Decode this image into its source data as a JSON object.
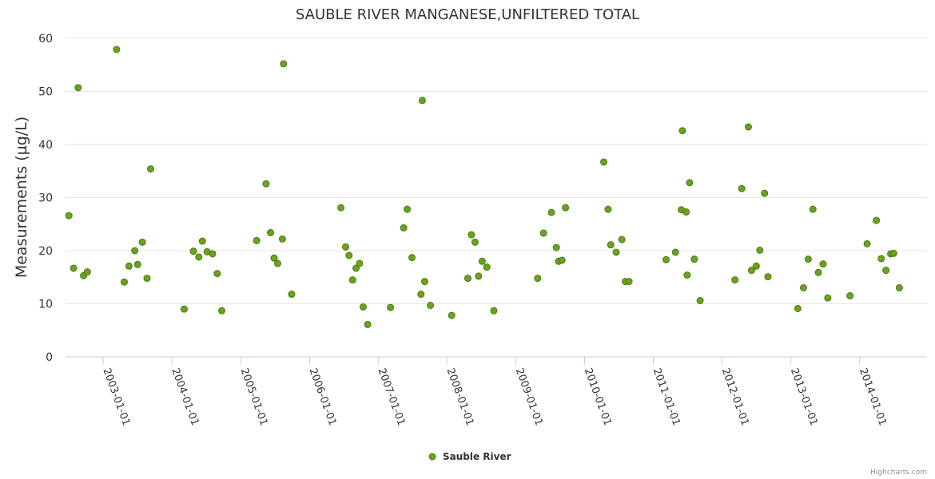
{
  "chart_data": {
    "type": "scatter",
    "title": "SAUBLE RIVER MANGANESE,UNFILTERED TOTAL",
    "ylabel": "Measurements (µg/L)",
    "xlabel": "",
    "ylim": [
      0,
      60
    ],
    "yticks": [
      0,
      10,
      20,
      30,
      40,
      50,
      60
    ],
    "xlim": [
      "2002-06-15",
      "2014-12-25"
    ],
    "xticks": [
      "2003-01-01",
      "2004-01-01",
      "2005-01-01",
      "2006-01-01",
      "2007-01-01",
      "2008-01-01",
      "2009-01-01",
      "2010-01-01",
      "2011-01-01",
      "2012-01-01",
      "2013-01-01",
      "2014-01-01"
    ],
    "grid": true,
    "legend": "bottom-center",
    "series": [
      {
        "name": "Sauble River",
        "color": "#6aa31e",
        "points": [
          {
            "x": "2002-07-03",
            "y": 26.6
          },
          {
            "x": "2002-07-28",
            "y": 16.7
          },
          {
            "x": "2002-08-21",
            "y": 50.7
          },
          {
            "x": "2002-09-19",
            "y": 15.3
          },
          {
            "x": "2002-10-09",
            "y": 16.0
          },
          {
            "x": "2003-03-13",
            "y": 57.9
          },
          {
            "x": "2003-04-23",
            "y": 14.1
          },
          {
            "x": "2003-05-18",
            "y": 17.1
          },
          {
            "x": "2003-06-18",
            "y": 20.0
          },
          {
            "x": "2003-07-03",
            "y": 17.4
          },
          {
            "x": "2003-07-28",
            "y": 21.6
          },
          {
            "x": "2003-08-22",
            "y": 14.8
          },
          {
            "x": "2003-09-10",
            "y": 35.4
          },
          {
            "x": "2004-03-06",
            "y": 9.0
          },
          {
            "x": "2004-04-24",
            "y": 19.9
          },
          {
            "x": "2004-05-23",
            "y": 18.8
          },
          {
            "x": "2004-06-11",
            "y": 21.8
          },
          {
            "x": "2004-07-06",
            "y": 19.8
          },
          {
            "x": "2004-08-04",
            "y": 19.4
          },
          {
            "x": "2004-08-29",
            "y": 15.7
          },
          {
            "x": "2004-09-22",
            "y": 8.7
          },
          {
            "x": "2005-03-26",
            "y": 21.9
          },
          {
            "x": "2005-05-15",
            "y": 32.6
          },
          {
            "x": "2005-06-08",
            "y": 23.4
          },
          {
            "x": "2005-06-27",
            "y": 18.6
          },
          {
            "x": "2005-07-16",
            "y": 17.6
          },
          {
            "x": "2005-08-10",
            "y": 22.2
          },
          {
            "x": "2005-08-16",
            "y": 55.2
          },
          {
            "x": "2005-09-28",
            "y": 11.8
          },
          {
            "x": "2006-06-17",
            "y": 28.1
          },
          {
            "x": "2006-07-12",
            "y": 20.7
          },
          {
            "x": "2006-07-30",
            "y": 19.1
          },
          {
            "x": "2006-08-18",
            "y": 14.5
          },
          {
            "x": "2006-09-05",
            "y": 16.7
          },
          {
            "x": "2006-09-24",
            "y": 17.6
          },
          {
            "x": "2006-10-13",
            "y": 9.4
          },
          {
            "x": "2006-11-06",
            "y": 6.1
          },
          {
            "x": "2007-03-07",
            "y": 9.3
          },
          {
            "x": "2007-05-16",
            "y": 24.3
          },
          {
            "x": "2007-06-04",
            "y": 27.8
          },
          {
            "x": "2007-06-29",
            "y": 18.7
          },
          {
            "x": "2007-08-16",
            "y": 11.8
          },
          {
            "x": "2007-08-23",
            "y": 48.3
          },
          {
            "x": "2007-09-05",
            "y": 14.2
          },
          {
            "x": "2007-10-05",
            "y": 9.7
          },
          {
            "x": "2008-01-26",
            "y": 7.8
          },
          {
            "x": "2008-04-21",
            "y": 14.8
          },
          {
            "x": "2008-05-10",
            "y": 23.0
          },
          {
            "x": "2008-05-29",
            "y": 21.6
          },
          {
            "x": "2008-06-17",
            "y": 15.2
          },
          {
            "x": "2008-07-06",
            "y": 18.0
          },
          {
            "x": "2008-07-31",
            "y": 16.9
          },
          {
            "x": "2008-09-06",
            "y": 8.7
          },
          {
            "x": "2009-04-27",
            "y": 14.8
          },
          {
            "x": "2009-05-28",
            "y": 23.3
          },
          {
            "x": "2009-07-09",
            "y": 27.2
          },
          {
            "x": "2009-08-04",
            "y": 20.6
          },
          {
            "x": "2009-08-16",
            "y": 18.0
          },
          {
            "x": "2009-09-03",
            "y": 18.2
          },
          {
            "x": "2009-09-22",
            "y": 28.1
          },
          {
            "x": "2010-04-13",
            "y": 36.7
          },
          {
            "x": "2010-05-06",
            "y": 27.8
          },
          {
            "x": "2010-05-20",
            "y": 21.1
          },
          {
            "x": "2010-06-18",
            "y": 19.7
          },
          {
            "x": "2010-07-18",
            "y": 22.1
          },
          {
            "x": "2010-08-06",
            "y": 14.2
          },
          {
            "x": "2010-08-25",
            "y": 14.2
          },
          {
            "x": "2011-03-10",
            "y": 18.3
          },
          {
            "x": "2011-04-29",
            "y": 19.7
          },
          {
            "x": "2011-05-30",
            "y": 27.7
          },
          {
            "x": "2011-06-05",
            "y": 42.6
          },
          {
            "x": "2011-06-24",
            "y": 27.3
          },
          {
            "x": "2011-06-30",
            "y": 15.4
          },
          {
            "x": "2011-07-13",
            "y": 32.8
          },
          {
            "x": "2011-08-07",
            "y": 18.4
          },
          {
            "x": "2011-09-07",
            "y": 10.6
          },
          {
            "x": "2012-03-10",
            "y": 14.5
          },
          {
            "x": "2012-04-15",
            "y": 31.7
          },
          {
            "x": "2012-05-20",
            "y": 43.3
          },
          {
            "x": "2012-06-06",
            "y": 16.3
          },
          {
            "x": "2012-07-01",
            "y": 17.1
          },
          {
            "x": "2012-07-20",
            "y": 20.1
          },
          {
            "x": "2012-08-14",
            "y": 30.8
          },
          {
            "x": "2012-09-01",
            "y": 15.1
          },
          {
            "x": "2013-02-07",
            "y": 9.1
          },
          {
            "x": "2013-03-09",
            "y": 13.0
          },
          {
            "x": "2013-04-03",
            "y": 18.4
          },
          {
            "x": "2013-04-28",
            "y": 27.8
          },
          {
            "x": "2013-05-27",
            "y": 15.9
          },
          {
            "x": "2013-06-21",
            "y": 17.5
          },
          {
            "x": "2013-07-16",
            "y": 11.1
          },
          {
            "x": "2013-11-11",
            "y": 11.5
          },
          {
            "x": "2014-02-10",
            "y": 21.3
          },
          {
            "x": "2014-03-31",
            "y": 25.7
          },
          {
            "x": "2014-04-26",
            "y": 18.5
          },
          {
            "x": "2014-05-21",
            "y": 16.3
          },
          {
            "x": "2014-06-15",
            "y": 19.4
          },
          {
            "x": "2014-07-01",
            "y": 19.5
          },
          {
            "x": "2014-07-31",
            "y": 13.0
          }
        ]
      }
    ]
  },
  "credits": "Highcharts.com"
}
